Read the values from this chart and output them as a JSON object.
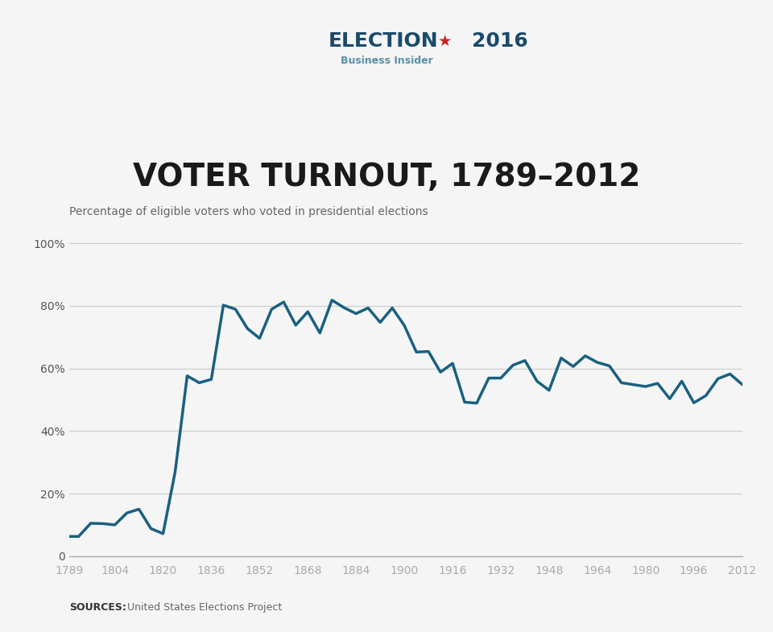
{
  "years": [
    1789,
    1792,
    1796,
    1800,
    1804,
    1808,
    1812,
    1816,
    1820,
    1824,
    1828,
    1832,
    1836,
    1840,
    1844,
    1848,
    1852,
    1856,
    1860,
    1864,
    1868,
    1872,
    1876,
    1880,
    1884,
    1888,
    1892,
    1896,
    1900,
    1904,
    1908,
    1912,
    1916,
    1920,
    1924,
    1928,
    1932,
    1936,
    1940,
    1944,
    1948,
    1952,
    1956,
    1960,
    1964,
    1968,
    1972,
    1976,
    1980,
    1984,
    1988,
    1992,
    1996,
    2000,
    2004,
    2008,
    2012
  ],
  "turnout": [
    6.3,
    6.3,
    10.5,
    10.4,
    10.0,
    13.8,
    15.0,
    8.8,
    7.2,
    26.9,
    57.6,
    55.4,
    56.5,
    80.2,
    78.9,
    72.7,
    69.6,
    78.9,
    81.2,
    73.8,
    78.1,
    71.3,
    81.8,
    79.4,
    77.5,
    79.3,
    74.7,
    79.3,
    73.7,
    65.2,
    65.4,
    58.8,
    61.6,
    49.2,
    48.9,
    56.9,
    56.9,
    61.0,
    62.5,
    55.9,
    53.0,
    63.3,
    60.6,
    64.0,
    61.9,
    60.8,
    55.4,
    54.8,
    54.2,
    55.2,
    50.3,
    55.9,
    49.0,
    51.3,
    56.7,
    58.2,
    54.9
  ],
  "line_color": "#1a6080",
  "line_width": 2.5,
  "background_color": "#f5f5f5",
  "grid_color": "#cccccc",
  "yticks": [
    0,
    20,
    40,
    60,
    80,
    100
  ],
  "xticks": [
    1789,
    1804,
    1820,
    1836,
    1852,
    1868,
    1884,
    1900,
    1916,
    1932,
    1948,
    1964,
    1980,
    1996,
    2012
  ],
  "ylim": [
    0,
    105
  ],
  "xlim": [
    1789,
    2012
  ],
  "title": "VOTER TURNOUT, 1789–2012",
  "title_fontsize": 28,
  "subtitle": "Percentage of eligible voters who voted in presidential elections",
  "subtitle_fontsize": 10,
  "header_bi": "Business Insider",
  "header_election": "ELECTION",
  "header_year": "2016",
  "source_text": "United States Elections Project",
  "source_label": "SOURCES:",
  "bi_color": "#5b8fa8",
  "election_color": "#1a4a6b",
  "star_red": "#cc2222"
}
